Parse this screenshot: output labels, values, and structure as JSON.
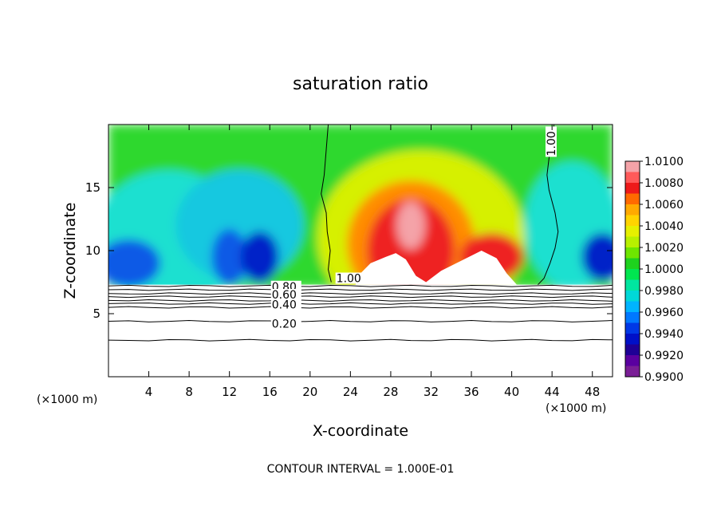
{
  "chart_data": {
    "type": "heatmap",
    "title": "saturation ratio",
    "xlabel": "X-coordinate",
    "ylabel": "Z-coordinate",
    "x_unit": "(×1000 m)",
    "y_unit": "(×1000 m)",
    "xlim": [
      0,
      50
    ],
    "ylim": [
      0,
      20
    ],
    "x_ticks": [
      4,
      8,
      12,
      16,
      20,
      24,
      28,
      32,
      36,
      40,
      44,
      48
    ],
    "y_ticks": [
      5,
      10,
      15
    ],
    "colorbar": {
      "min": 0.99,
      "max": 1.01,
      "labels": [
        "1.0100",
        "1.0080",
        "1.0060",
        "1.0040",
        "1.0020",
        "1.0000",
        "0.9980",
        "0.9960",
        "0.9940",
        "0.9920",
        "0.9900"
      ],
      "colors": [
        "#f4a3a8",
        "#ff5a5a",
        "#ee1a1a",
        "#ff6a00",
        "#ffaa00",
        "#ffd400",
        "#e6f000",
        "#b8f000",
        "#6ee600",
        "#1ed21e",
        "#00e650",
        "#00e6a0",
        "#00d8d8",
        "#00b4ff",
        "#0078ff",
        "#0038e6",
        "#0010c8",
        "#1e0096",
        "#5a00a0",
        "#7a1e96"
      ]
    },
    "contours": [
      {
        "value": 1.0,
        "label": "1.00"
      },
      {
        "value": 0.8,
        "label": "0.80"
      },
      {
        "value": 0.6,
        "label": "0.60"
      },
      {
        "value": 0.4,
        "label": "0.40"
      },
      {
        "value": 0.2,
        "label": "0.20"
      }
    ],
    "contour_interval_text": "CONTOUR INTERVAL = 1.000E-01"
  }
}
